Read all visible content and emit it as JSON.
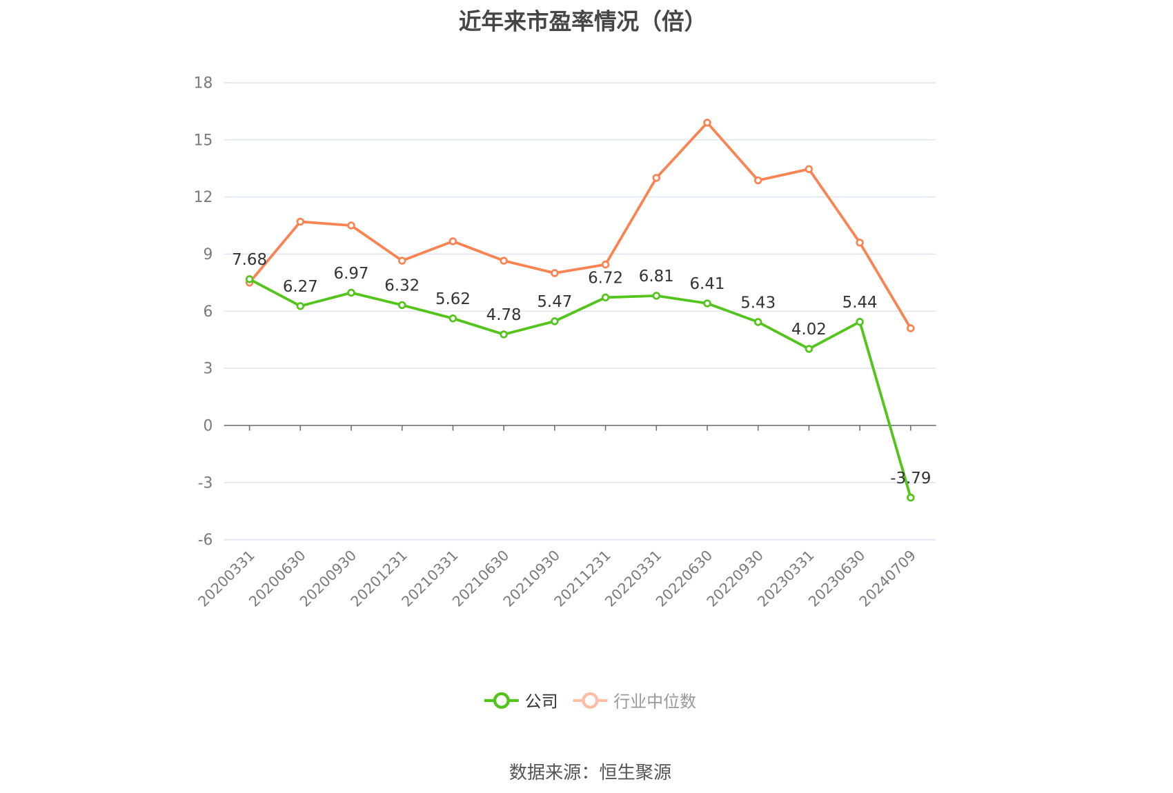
{
  "title": "近年来市盈率情况（倍）",
  "source": "数据来源：恒生聚源",
  "colors": {
    "company": "#52c41a",
    "industry": "#fa8352",
    "industry_legend": "#fbbfa5",
    "grid": "#e0e6f1",
    "axis": "#6e7079"
  },
  "legend": [
    {
      "name": "公司",
      "color": "#52c41a",
      "active": true
    },
    {
      "name": "行业中位数",
      "color": "#fbbfa5",
      "active": false
    }
  ],
  "chart_data": {
    "type": "line",
    "title": "近年来市盈率情况（倍）",
    "xlabel": "",
    "ylabel": "",
    "ylim": [
      -6,
      18
    ],
    "yticks": [
      18,
      15,
      12,
      9,
      6,
      3,
      0,
      -3,
      -6
    ],
    "grid": true,
    "legend_position": "bottom",
    "categories": [
      "20200331",
      "20200630",
      "20200930",
      "20201231",
      "20210331",
      "20210630",
      "20210930",
      "20211231",
      "20220331",
      "20220630",
      "20220930",
      "20230331",
      "20230630",
      "20240709"
    ],
    "series": [
      {
        "name": "公司",
        "color": "#52c41a",
        "show_labels": true,
        "values": [
          7.68,
          6.27,
          6.97,
          6.32,
          5.62,
          4.78,
          5.47,
          6.72,
          6.81,
          6.41,
          5.43,
          4.02,
          5.44,
          -3.79
        ]
      },
      {
        "name": "行业中位数",
        "color": "#fa8352",
        "show_labels": false,
        "values": [
          7.5,
          10.7,
          10.5,
          8.65,
          9.67,
          8.65,
          8.0,
          8.45,
          13.0,
          15.9,
          12.87,
          13.46,
          9.6,
          5.1
        ]
      }
    ]
  }
}
